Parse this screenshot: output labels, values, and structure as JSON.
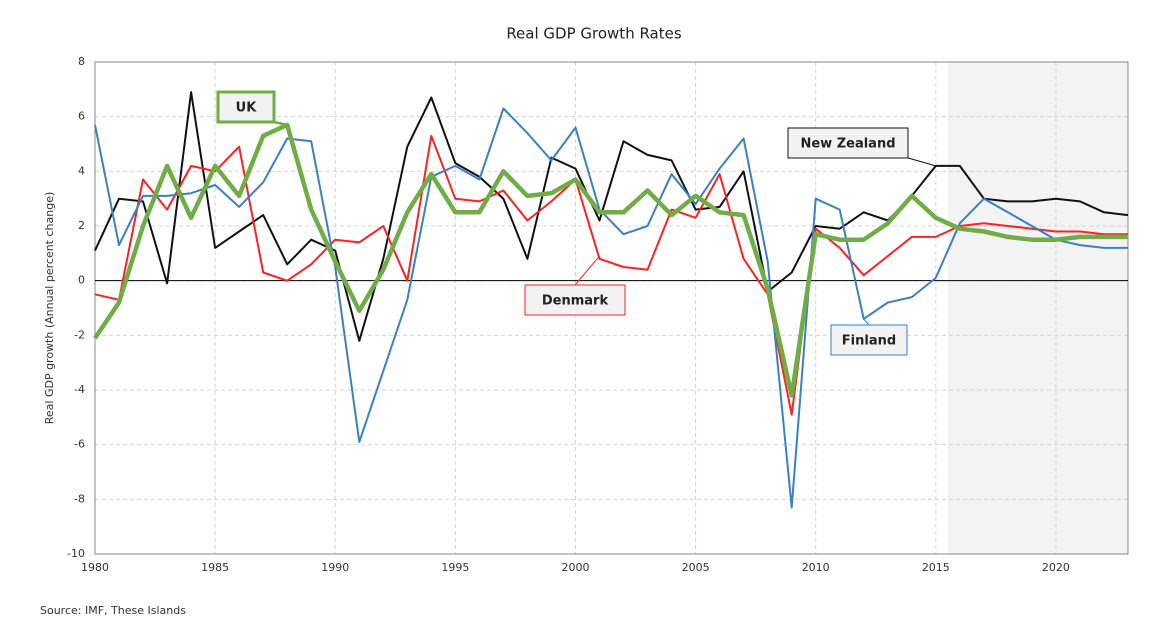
{
  "chart_data": {
    "type": "line",
    "title": "Real GDP Growth Rates",
    "y_label": "Real GDP growth (Annual percent change)",
    "source": "Source: IMF, These Islands",
    "x": [
      1980,
      1981,
      1982,
      1983,
      1984,
      1985,
      1986,
      1987,
      1988,
      1989,
      1990,
      1991,
      1992,
      1993,
      1994,
      1995,
      1996,
      1997,
      1998,
      1999,
      2000,
      2001,
      2002,
      2003,
      2004,
      2005,
      2006,
      2007,
      2008,
      2009,
      2010,
      2011,
      2012,
      2013,
      2014,
      2015,
      2016,
      2017,
      2018,
      2019,
      2020,
      2021,
      2022,
      2023
    ],
    "series": [
      {
        "name": "New Zealand",
        "color": "#111111",
        "width": 2,
        "values": [
          1.1,
          3.0,
          2.9,
          -0.1,
          6.9,
          1.2,
          1.8,
          2.4,
          0.6,
          1.5,
          1.1,
          -2.2,
          0.8,
          4.9,
          6.7,
          4.3,
          3.8,
          3.0,
          0.8,
          4.5,
          4.1,
          2.2,
          5.1,
          4.6,
          4.4,
          2.6,
          2.7,
          4.0,
          -0.4,
          0.3,
          2.0,
          1.9,
          2.5,
          2.2,
          3.1,
          4.2,
          4.2,
          3.0,
          2.9,
          2.9,
          3.0,
          2.9,
          2.5,
          2.4
        ]
      },
      {
        "name": "Denmark",
        "color": "#ff2020",
        "width": 2,
        "values": [
          -0.5,
          -0.7,
          3.7,
          2.6,
          4.2,
          4.0,
          4.9,
          0.3,
          0.0,
          0.6,
          1.5,
          1.4,
          2.0,
          0.0,
          5.3,
          3.0,
          2.9,
          3.3,
          2.2,
          2.9,
          3.7,
          0.8,
          0.5,
          0.4,
          2.6,
          2.3,
          3.9,
          0.8,
          -0.5,
          -4.9,
          1.9,
          1.2,
          0.2,
          0.9,
          1.6,
          1.6,
          2.0,
          2.1,
          2.0,
          1.9,
          1.8,
          1.8,
          1.7,
          1.7
        ]
      },
      {
        "name": "Finland",
        "color": "#3a80c4",
        "width": 2,
        "values": [
          5.7,
          1.3,
          3.1,
          3.1,
          3.2,
          3.5,
          2.7,
          3.6,
          5.2,
          5.1,
          0.5,
          -5.9,
          -3.3,
          -0.7,
          3.8,
          4.2,
          3.7,
          6.3,
          5.4,
          4.4,
          5.6,
          2.6,
          1.7,
          2.0,
          3.9,
          2.8,
          4.1,
          5.2,
          0.7,
          -8.3,
          3.0,
          2.6,
          -1.4,
          -0.8,
          -0.6,
          0.1,
          2.1,
          3.0,
          2.5,
          2.0,
          1.5,
          1.3,
          1.2,
          1.2
        ]
      },
      {
        "name": "UK",
        "color": "#70ad47",
        "width": 4.5,
        "values": [
          -2.1,
          -0.8,
          2.0,
          4.2,
          2.3,
          4.2,
          3.1,
          5.3,
          5.7,
          2.6,
          0.7,
          -1.1,
          0.4,
          2.5,
          3.9,
          2.5,
          2.5,
          4.0,
          3.1,
          3.2,
          3.7,
          2.5,
          2.5,
          3.3,
          2.4,
          3.1,
          2.5,
          2.4,
          -0.3,
          -4.2,
          1.7,
          1.5,
          1.5,
          2.1,
          3.1,
          2.3,
          1.9,
          1.8,
          1.6,
          1.5,
          1.5,
          1.6,
          1.6,
          1.6
        ]
      }
    ],
    "forecast_start": 2015.5,
    "xlim": [
      1980,
      2023
    ],
    "xticks": [
      1980,
      1985,
      1990,
      1995,
      2000,
      2005,
      2010,
      2015,
      2020
    ],
    "ylim": [
      -10,
      8
    ],
    "yticks": [
      -10,
      -8,
      -6,
      -4,
      -2,
      0,
      2,
      4,
      6,
      8
    ],
    "grid": true
  }
}
